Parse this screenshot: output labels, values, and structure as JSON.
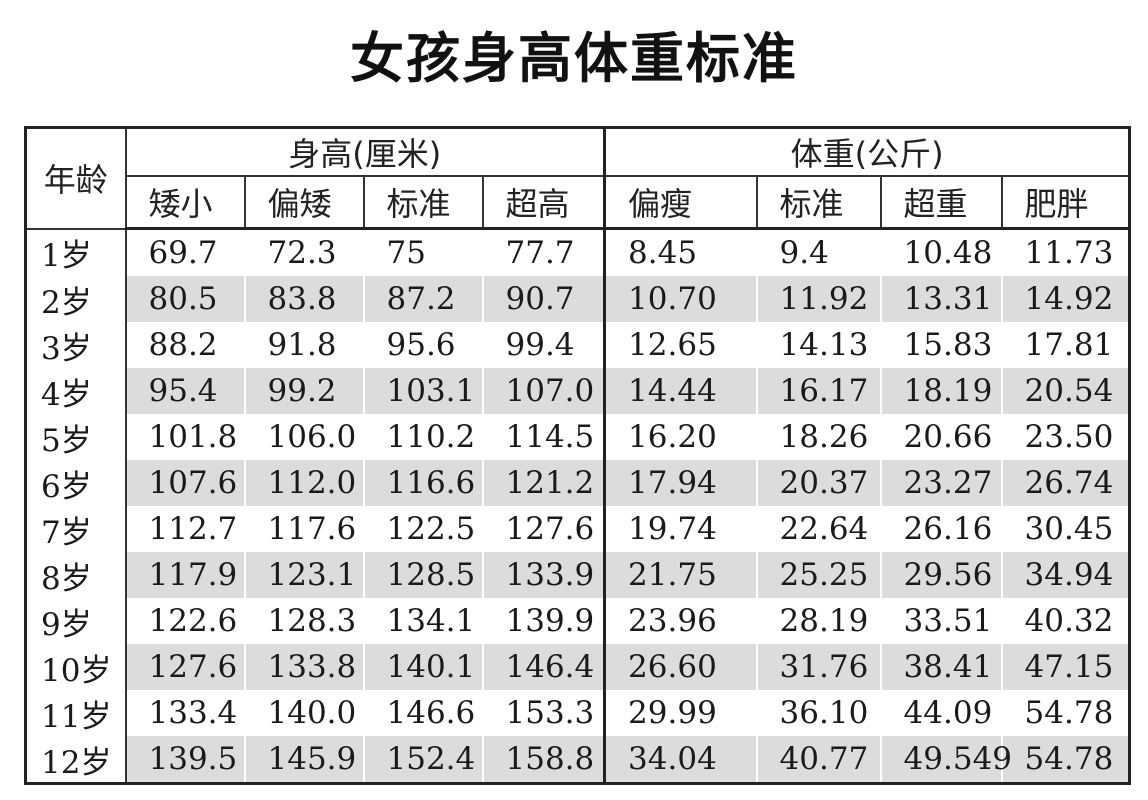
{
  "title": "女孩身高体重标准",
  "header": {
    "age": "年龄",
    "height_group": "身高(厘米)",
    "weight_group": "体重(公斤)",
    "height_cols": [
      "矮小",
      "偏矮",
      "标准",
      "超高"
    ],
    "weight_cols": [
      "偏瘦",
      "标准",
      "超重",
      "肥胖"
    ]
  },
  "rows": [
    {
      "age": "1岁",
      "h": [
        "69.7",
        "72.3",
        "75",
        "77.7"
      ],
      "w": [
        "8.45",
        "9.4",
        "10.48",
        "11.73"
      ]
    },
    {
      "age": "2岁",
      "h": [
        "80.5",
        "83.8",
        "87.2",
        "90.7"
      ],
      "w": [
        "10.70",
        "11.92",
        "13.31",
        "14.92"
      ]
    },
    {
      "age": "3岁",
      "h": [
        "88.2",
        "91.8",
        "95.6",
        "99.4"
      ],
      "w": [
        "12.65",
        "14.13",
        "15.83",
        "17.81"
      ]
    },
    {
      "age": "4岁",
      "h": [
        "95.4",
        "99.2",
        "103.1",
        "107.0"
      ],
      "w": [
        "14.44",
        "16.17",
        "18.19",
        "20.54"
      ]
    },
    {
      "age": "5岁",
      "h": [
        "101.8",
        "106.0",
        "110.2",
        "114.5"
      ],
      "w": [
        "16.20",
        "18.26",
        "20.66",
        "23.50"
      ]
    },
    {
      "age": "6岁",
      "h": [
        "107.6",
        "112.0",
        "116.6",
        "121.2"
      ],
      "w": [
        "17.94",
        "20.37",
        "23.27",
        "26.74"
      ]
    },
    {
      "age": "7岁",
      "h": [
        "112.7",
        "117.6",
        "122.5",
        "127.6"
      ],
      "w": [
        "19.74",
        "22.64",
        "26.16",
        "30.45"
      ]
    },
    {
      "age": "8岁",
      "h": [
        "117.9",
        "123.1",
        "128.5",
        "133.9"
      ],
      "w": [
        "21.75",
        "25.25",
        "29.56",
        "34.94"
      ]
    },
    {
      "age": "9岁",
      "h": [
        "122.6",
        "128.3",
        "134.1",
        "139.9"
      ],
      "w": [
        "23.96",
        "28.19",
        "33.51",
        "40.32"
      ]
    },
    {
      "age": "10岁",
      "h": [
        "127.6",
        "133.8",
        "140.1",
        "146.4"
      ],
      "w": [
        "26.60",
        "31.76",
        "38.41",
        "47.15"
      ]
    },
    {
      "age": "11岁",
      "h": [
        "133.4",
        "140.0",
        "146.6",
        "153.3"
      ],
      "w": [
        "29.99",
        "36.10",
        "44.09",
        "54.78"
      ]
    },
    {
      "age": "12岁",
      "h": [
        "139.5",
        "145.9",
        "152.4",
        "158.8"
      ],
      "w": [
        "34.04",
        "40.77",
        "49.549",
        "54.78"
      ]
    }
  ]
}
